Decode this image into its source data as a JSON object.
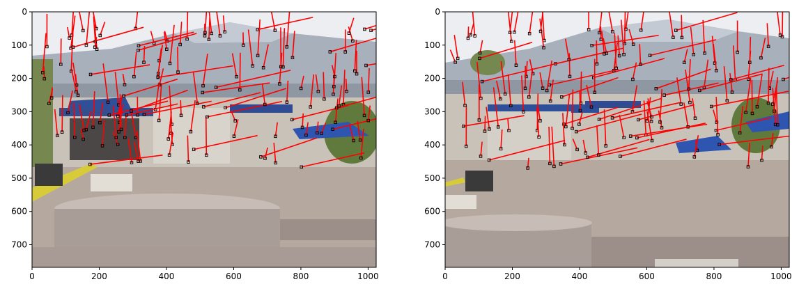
{
  "panels": [
    {
      "id": "left",
      "xlim": [
        0,
        1024
      ],
      "ylim": [
        768,
        0
      ],
      "xticks": [
        0,
        200,
        400,
        600,
        800,
        1000
      ],
      "yticks": [
        0,
        100,
        200,
        300,
        400,
        500,
        600,
        700
      ],
      "image_palette": {
        "sky": "#eceef2",
        "roof": "#9ea7b3",
        "building": "#c7c0b5",
        "awning": "#2f4f98",
        "trees": "#5f7a3c",
        "ground": "#b5a89e",
        "platform": "#b2a4a0"
      }
    },
    {
      "id": "right",
      "xlim": [
        0,
        1024
      ],
      "ylim": [
        768,
        0
      ],
      "xticks": [
        0,
        200,
        400,
        600,
        800,
        1000
      ],
      "yticks": [
        0,
        100,
        200,
        300,
        400,
        500,
        600,
        700
      ],
      "image_palette": {
        "sky": "#eceef2",
        "roof": "#9ea7b3",
        "building": "#c7c0b5",
        "awning": "#2f4f98",
        "trees": "#5f7a3c",
        "ground": "#b5a89e",
        "platform": "#b2a4a0"
      }
    }
  ],
  "overlay": {
    "line_color": "#ff0000",
    "marker_color": "#000000"
  }
}
